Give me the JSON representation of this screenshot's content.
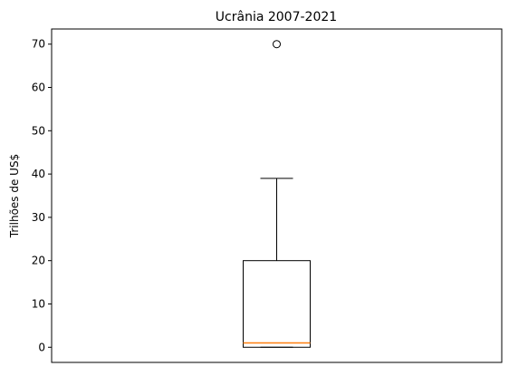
{
  "chart_data": {
    "type": "boxplot",
    "title": "Ucrânia 2007-2021",
    "xlabel": "",
    "ylabel": "Trilhões de US$",
    "ylim": [
      -3.5,
      73.5
    ],
    "yticks": [
      0,
      10,
      20,
      30,
      40,
      50,
      60,
      70
    ],
    "xticks": [],
    "grid": false,
    "legend": "none",
    "box": {
      "whisker_low": 0,
      "q1": 0,
      "median": 1,
      "q3": 20,
      "whisker_high": 39,
      "outliers": [
        70
      ]
    },
    "colors": {
      "box": "#000000",
      "median": "#ff7f0e",
      "outlier_edge": "#000000"
    }
  }
}
